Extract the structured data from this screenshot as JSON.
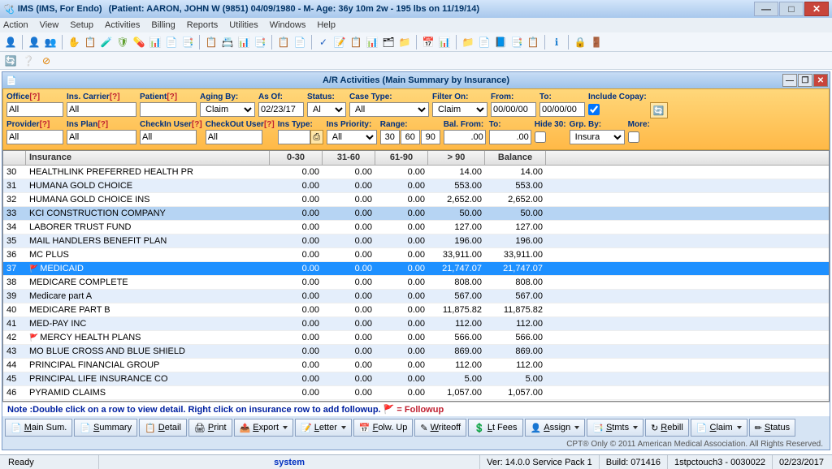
{
  "title": {
    "app": "IMS (IMS, For Endo)",
    "patient": "(Patient: AARON, JOHN W (9851) 04/09/1980 - M- Age: 36y 10m 2w - 195 lbs on 11/19/14)"
  },
  "menu": [
    "Action",
    "View",
    "Setup",
    "Activities",
    "Billing",
    "Reports",
    "Utilities",
    "Windows",
    "Help"
  ],
  "subwindow_title": "A/R Activities  (Main Summary by Insurance)",
  "filters": {
    "row1": {
      "office": {
        "label": "Office",
        "q": "[?]",
        "value": "All"
      },
      "carrier": {
        "label": "Ins. Carrier",
        "q": "[?]",
        "value": "All"
      },
      "patient": {
        "label": "Patient",
        "q": "[?]",
        "value": ""
      },
      "aging_by": {
        "label": "Aging By:",
        "value": "Claim Date"
      },
      "as_of": {
        "label": "As Of:",
        "value": "02/23/17"
      },
      "status": {
        "label": "Status:",
        "value": "All"
      },
      "case_type": {
        "label": "Case Type:",
        "value": "All"
      },
      "filter_on": {
        "label": "Filter On:",
        "value": "Claim Date"
      },
      "from": {
        "label": "From:",
        "value": "00/00/00"
      },
      "to": {
        "label": "To:",
        "value": "00/00/00"
      },
      "include_copay": {
        "label": "Include Copay:"
      }
    },
    "row2": {
      "provider": {
        "label": "Provider",
        "q": "[?]",
        "value": "All"
      },
      "ins_plan": {
        "label": "Ins Plan",
        "q": "[?]",
        "value": "All"
      },
      "checkin_user": {
        "label": "CheckIn User",
        "q": "[?]",
        "value": "All"
      },
      "checkout_user": {
        "label": "CheckOut User",
        "q": "[?]",
        "value": "All"
      },
      "ins_type": {
        "label": "Ins Type:",
        "value": ""
      },
      "ins_priority": {
        "label": "Ins Priority:",
        "value": "All"
      },
      "range": {
        "label": "Range:",
        "r1": "30",
        "r2": "60",
        "r3": "90"
      },
      "bal_from": {
        "label": "Bal. From:",
        "value": ".00"
      },
      "bal_to": {
        "label": "To:",
        "value": ".00"
      },
      "hide30": {
        "label": "Hide 30:"
      },
      "grp_by": {
        "label": "Grp. By:",
        "value": "Insurance"
      },
      "more": {
        "label": "More:"
      }
    }
  },
  "grid": {
    "headers": {
      "idx": "",
      "ins": "Insurance",
      "c030": "0-30",
      "c3160": "31-60",
      "c6190": "61-90",
      "c90": "> 90",
      "bal": "Balance"
    },
    "rows": [
      {
        "n": "30",
        "name": "HEALTHLINK PREFERRED HEALTH PR",
        "a": "0.00",
        "b": "0.00",
        "c": "0.00",
        "d": "14.00",
        "e": "14.00"
      },
      {
        "n": "31",
        "name": "HUMANA GOLD CHOICE",
        "a": "0.00",
        "b": "0.00",
        "c": "0.00",
        "d": "553.00",
        "e": "553.00"
      },
      {
        "n": "32",
        "name": "HUMANA GOLD CHOICE INS",
        "a": "0.00",
        "b": "0.00",
        "c": "0.00",
        "d": "2,652.00",
        "e": "2,652.00"
      },
      {
        "n": "33",
        "name": "KCI CONSTRUCTION COMPANY",
        "a": "0.00",
        "b": "0.00",
        "c": "0.00",
        "d": "50.00",
        "e": "50.00",
        "hl": true
      },
      {
        "n": "34",
        "name": "LABORER TRUST FUND",
        "a": "0.00",
        "b": "0.00",
        "c": "0.00",
        "d": "127.00",
        "e": "127.00"
      },
      {
        "n": "35",
        "name": "MAIL HANDLERS BENEFIT PLAN",
        "a": "0.00",
        "b": "0.00",
        "c": "0.00",
        "d": "196.00",
        "e": "196.00"
      },
      {
        "n": "36",
        "name": "MC PLUS",
        "a": "0.00",
        "b": "0.00",
        "c": "0.00",
        "d": "33,911.00",
        "e": "33,911.00"
      },
      {
        "n": "37",
        "name": "MEDICAID",
        "a": "0.00",
        "b": "0.00",
        "c": "0.00",
        "d": "21,747.07",
        "e": "21,747.07",
        "sel": true,
        "flag": true
      },
      {
        "n": "38",
        "name": "MEDICARE COMPLETE",
        "a": "0.00",
        "b": "0.00",
        "c": "0.00",
        "d": "808.00",
        "e": "808.00"
      },
      {
        "n": "39",
        "name": "Medicare part A",
        "a": "0.00",
        "b": "0.00",
        "c": "0.00",
        "d": "567.00",
        "e": "567.00"
      },
      {
        "n": "40",
        "name": "MEDICARE PART B",
        "a": "0.00",
        "b": "0.00",
        "c": "0.00",
        "d": "11,875.82",
        "e": "11,875.82"
      },
      {
        "n": "41",
        "name": "MED-PAY INC",
        "a": "0.00",
        "b": "0.00",
        "c": "0.00",
        "d": "112.00",
        "e": "112.00"
      },
      {
        "n": "42",
        "name": "MERCY HEALTH PLANS",
        "a": "0.00",
        "b": "0.00",
        "c": "0.00",
        "d": "566.00",
        "e": "566.00",
        "flag": true
      },
      {
        "n": "43",
        "name": "MO BLUE CROSS AND BLUE SHIELD",
        "a": "0.00",
        "b": "0.00",
        "c": "0.00",
        "d": "869.00",
        "e": "869.00"
      },
      {
        "n": "44",
        "name": "PRINCIPAL FINANCIAL GROUP",
        "a": "0.00",
        "b": "0.00",
        "c": "0.00",
        "d": "112.00",
        "e": "112.00"
      },
      {
        "n": "45",
        "name": "PRINCIPAL LIFE INSURANCE CO",
        "a": "0.00",
        "b": "0.00",
        "c": "0.00",
        "d": "5.00",
        "e": "5.00"
      },
      {
        "n": "46",
        "name": "PYRAMID CLAIMS",
        "a": "0.00",
        "b": "0.00",
        "c": "0.00",
        "d": "1,057.00",
        "e": "1,057.00"
      }
    ]
  },
  "note": "Note :Double click on a row to view detail. Right click on insurance row to add followup.   ",
  "note_flag": "🚩 = Followup",
  "buttons": [
    "Main Sum.",
    "Summary",
    "Detail",
    "Print",
    "Export",
    "Letter",
    "Folw. Up",
    "Writeoff",
    "Lt Fees",
    "Assign",
    "Stmts",
    "Rebill",
    "Claim",
    "Status"
  ],
  "button_icons": [
    "📄",
    "📄",
    "📋",
    "🖨",
    "📤",
    "📝",
    "📅",
    "✎",
    "💲",
    "👤",
    "📑",
    "↻",
    "📄",
    "✏"
  ],
  "button_arrow": {
    "3": false,
    "4": true,
    "5": true,
    "9": true,
    "10": true,
    "12": true
  },
  "copyright": "CPT® Only © 2011 American Medical Association.  All Rights Reserved.",
  "status": {
    "ready": "Ready",
    "system": "system",
    "ver": "Ver: 14.0.0 Service Pack 1",
    "build": "Build: 071416",
    "session": "1stpctouch3 - 0030022",
    "date": "02/23/2017"
  }
}
